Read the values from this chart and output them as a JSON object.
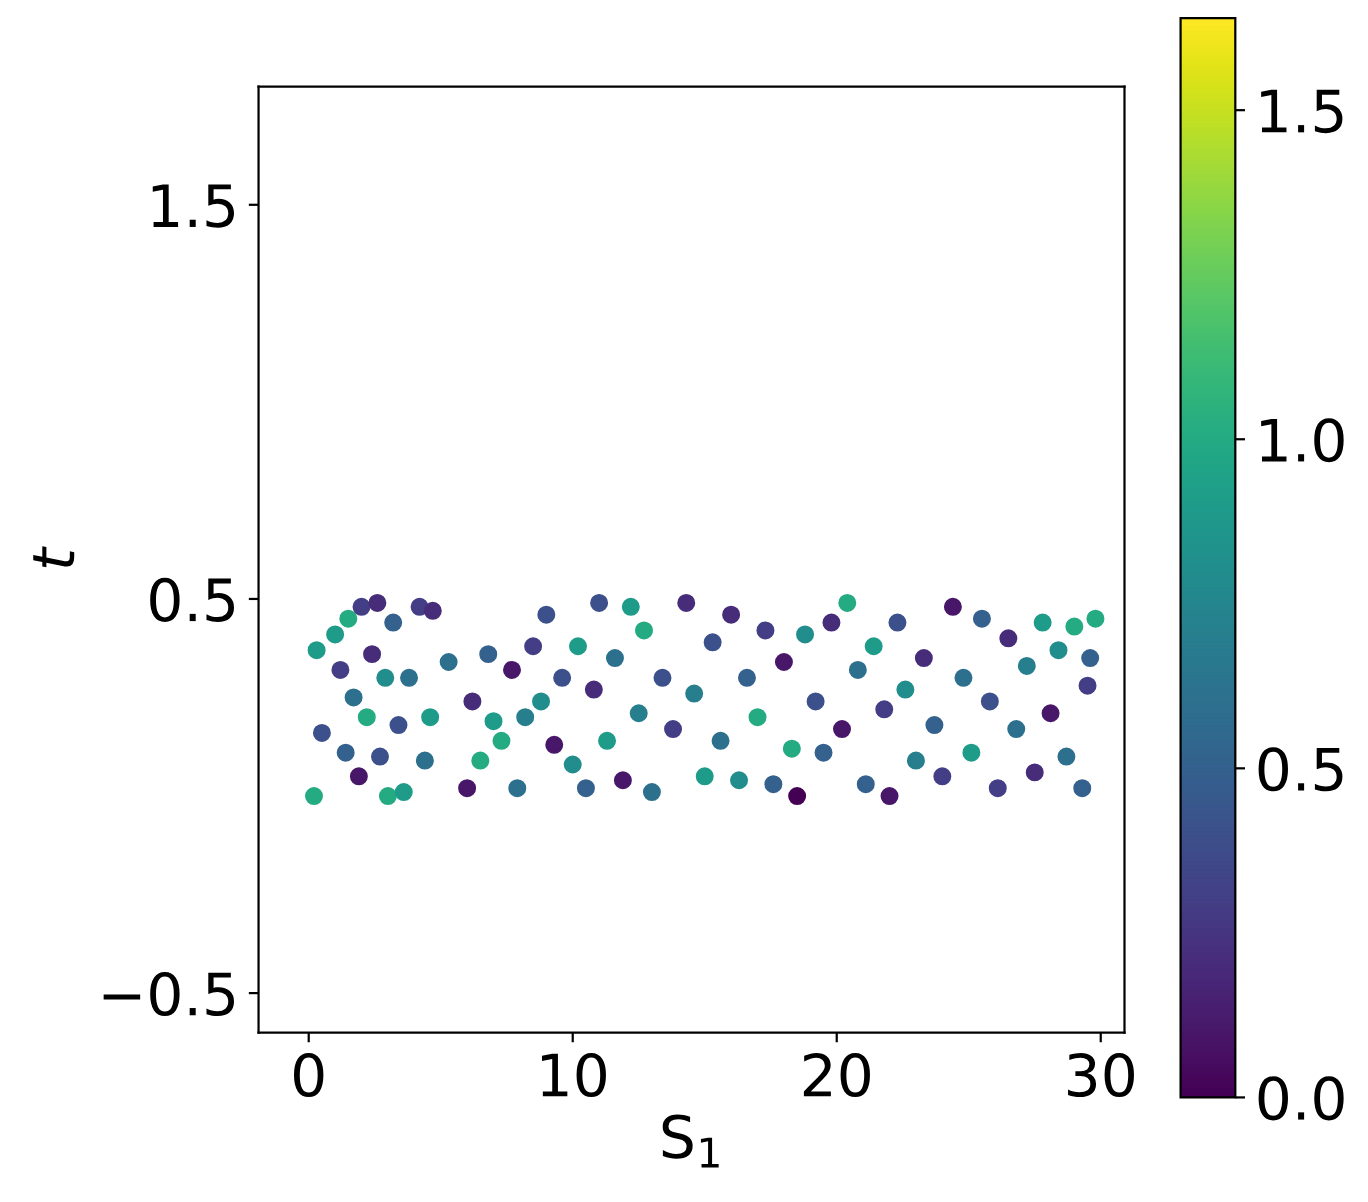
{
  "chart_data": {
    "type": "scatter",
    "xlabel": "S$_{1}$",
    "ylabel": "t",
    "xlim": [
      -1.9,
      30.9
    ],
    "ylim": [
      -0.6,
      1.8
    ],
    "xticks": [
      0,
      10,
      20,
      30
    ],
    "yticks": [
      {
        "value": -0.5,
        "label": "−0.5"
      },
      0.5,
      1.5
    ],
    "clim": [
      0,
      1.64
    ],
    "cticks": [
      {
        "value": 0,
        "label": "0.0"
      },
      0.5,
      {
        "value": 1,
        "label": "1.0"
      },
      1.5
    ],
    "grid": false,
    "marker": "circle",
    "x": [
      0.2,
      0.3,
      0.5,
      1.0,
      1.2,
      1.4,
      1.5,
      1.7,
      1.9,
      2.0,
      2.2,
      2.4,
      2.6,
      2.7,
      2.9,
      3.0,
      3.2,
      3.4,
      3.6,
      3.8,
      4.2,
      4.4,
      4.7,
      4.6,
      5.3,
      6.0,
      6.2,
      6.5,
      6.8,
      7.0,
      7.3,
      7.7,
      7.9,
      8.2,
      8.5,
      8.8,
      9.0,
      9.3,
      9.6,
      10.0,
      10.2,
      10.5,
      10.8,
      11.0,
      11.3,
      11.6,
      11.9,
      12.2,
      12.5,
      12.7,
      13.0,
      13.4,
      13.8,
      14.3,
      14.6,
      15.0,
      15.3,
      15.6,
      16.0,
      16.3,
      16.6,
      17.0,
      17.3,
      17.6,
      18.0,
      18.3,
      18.5,
      18.8,
      19.2,
      19.5,
      19.8,
      20.2,
      20.4,
      20.8,
      21.1,
      21.4,
      21.8,
      22.0,
      22.3,
      22.6,
      23.0,
      23.3,
      23.7,
      24.0,
      24.4,
      24.8,
      25.1,
      25.5,
      25.8,
      26.1,
      26.5,
      26.8,
      27.2,
      27.5,
      27.8,
      28.1,
      28.4,
      28.7,
      29.0,
      29.3,
      29.5,
      29.8,
      29.6
    ],
    "values": [
      0.0,
      0.37,
      0.16,
      0.41,
      0.32,
      0.11,
      0.45,
      0.25,
      0.05,
      0.48,
      0.2,
      0.36,
      0.49,
      0.1,
      0.3,
      0.0,
      0.44,
      0.18,
      0.01,
      0.3,
      0.48,
      0.09,
      0.47,
      0.2,
      0.34,
      0.02,
      0.24,
      0.09,
      0.36,
      0.19,
      0.14,
      0.32,
      0.02,
      0.2,
      0.38,
      0.24,
      0.46,
      0.13,
      0.3,
      0.08,
      0.38,
      0.02,
      0.27,
      0.49,
      0.14,
      0.35,
      0.04,
      0.48,
      0.21,
      0.42,
      0.01,
      0.3,
      0.17,
      0.49,
      0.26,
      0.05,
      0.39,
      0.14,
      0.46,
      0.04,
      0.3,
      0.2,
      0.42,
      0.03,
      0.34,
      0.12,
      0.0,
      0.41,
      0.24,
      0.11,
      0.44,
      0.17,
      0.49,
      0.32,
      0.03,
      0.38,
      0.22,
      0.0,
      0.44,
      0.27,
      0.09,
      0.35,
      0.18,
      0.05,
      0.48,
      0.3,
      0.11,
      0.45,
      0.24,
      0.02,
      0.4,
      0.17,
      0.33,
      0.06,
      0.44,
      0.21,
      0.37,
      0.1,
      0.43,
      0.02,
      0.28,
      0.45,
      0.35
    ],
    "cvalues": [
      1.0,
      0.9,
      0.4,
      0.9,
      0.3,
      0.5,
      1.0,
      0.6,
      0.1,
      0.3,
      1.0,
      0.2,
      0.2,
      0.4,
      0.8,
      1.0,
      0.5,
      0.4,
      0.9,
      0.6,
      0.3,
      0.6,
      0.2,
      0.9,
      0.6,
      0.1,
      0.2,
      1.0,
      0.5,
      0.9,
      1.0,
      0.1,
      0.6,
      0.7,
      0.3,
      0.8,
      0.4,
      0.1,
      0.4,
      0.8,
      0.9,
      0.5,
      0.2,
      0.4,
      0.9,
      0.6,
      0.1,
      0.9,
      0.7,
      1.0,
      0.6,
      0.4,
      0.3,
      0.2,
      0.7,
      0.9,
      0.4,
      0.6,
      0.2,
      0.8,
      0.5,
      1.0,
      0.3,
      0.5,
      0.1,
      1.0,
      0.0,
      0.8,
      0.4,
      0.5,
      0.2,
      0.1,
      1.0,
      0.6,
      0.5,
      0.9,
      0.3,
      0.1,
      0.4,
      0.8,
      0.7,
      0.2,
      0.5,
      0.3,
      0.1,
      0.6,
      0.9,
      0.5,
      0.4,
      0.3,
      0.2,
      0.6,
      0.7,
      0.2,
      0.9,
      0.1,
      0.8,
      0.6,
      1.0,
      0.5,
      0.3,
      1.0,
      0.5
    ]
  }
}
